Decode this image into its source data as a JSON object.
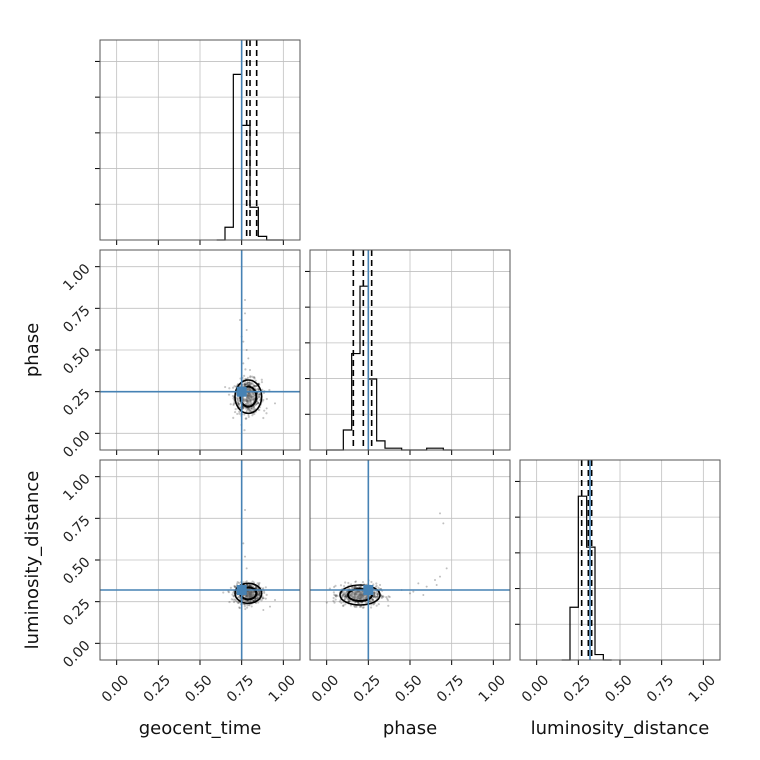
{
  "chart_data": {
    "type": "corner",
    "parameters": [
      "geocent_time",
      "phase",
      "luminosity_distance"
    ],
    "axis_range": [
      -0.1,
      1.1
    ],
    "tick_values": [
      0.0,
      0.25,
      0.5,
      0.75,
      1.0
    ],
    "tick_labels": [
      "0.00",
      "0.25",
      "0.50",
      "0.75",
      "1.00"
    ],
    "grid": true,
    "colors": {
      "truth": "#4682b4",
      "hist": "#000000",
      "quantile": "#000000",
      "scatter": "#000000",
      "contour": "#000000",
      "grid": "#c0c0c0"
    },
    "truths": {
      "geocent_time": 0.75,
      "phase": 0.25,
      "luminosity_distance": 0.32
    },
    "histograms": [
      {
        "param": "geocent_time",
        "bin_edges": [
          0.6,
          0.65,
          0.7,
          0.75,
          0.8,
          0.85,
          0.9,
          0.95,
          1.0
        ],
        "counts": [
          0,
          0.07,
          0.91,
          0.63,
          0.18,
          0.02,
          0,
          0
        ],
        "quantiles": [
          0.78,
          0.8,
          0.84
        ]
      },
      {
        "param": "phase",
        "bin_edges": [
          0.0,
          0.05,
          0.1,
          0.15,
          0.2,
          0.25,
          0.3,
          0.35,
          0.4,
          0.45,
          0.5,
          0.55,
          0.6,
          0.65,
          0.7,
          0.75
        ],
        "counts": [
          0,
          0,
          0.11,
          0.53,
          0.9,
          0.39,
          0.05,
          0.01,
          0.01,
          0,
          0,
          0,
          0.01,
          0.01,
          0
        ],
        "quantiles": [
          0.16,
          0.22,
          0.27
        ]
      },
      {
        "param": "luminosity_distance",
        "bin_edges": [
          0.15,
          0.2,
          0.25,
          0.3,
          0.35,
          0.4,
          0.45
        ],
        "counts": [
          0,
          0.29,
          0.9,
          0.62,
          0.03,
          0
        ],
        "quantiles": [
          0.27,
          0.31,
          0.33
        ]
      }
    ],
    "panels_2d": [
      {
        "x": "geocent_time",
        "y": "phase",
        "center": [
          0.79,
          0.22
        ],
        "spread": [
          0.04,
          0.05
        ],
        "tail_points": [
          [
            0.77,
            0.8
          ],
          [
            0.78,
            0.62
          ],
          [
            0.76,
            0.55
          ],
          [
            0.79,
            0.45
          ],
          [
            0.74,
            0.68
          ],
          [
            0.77,
            0.72
          ],
          [
            0.75,
            0.58
          ],
          [
            0.8,
            0.38
          ],
          [
            0.78,
            0.5
          ],
          [
            0.76,
            0.42
          ],
          [
            0.9,
            0.15
          ],
          [
            0.95,
            0.18
          ]
        ]
      },
      {
        "x": "geocent_time",
        "y": "luminosity_distance",
        "center": [
          0.79,
          0.3
        ],
        "spread": [
          0.04,
          0.03
        ],
        "tail_points": [
          [
            0.77,
            0.8
          ],
          [
            0.76,
            0.6
          ],
          [
            0.77,
            0.52
          ],
          [
            0.78,
            0.45
          ],
          [
            0.92,
            0.22
          ],
          [
            0.95,
            0.26
          ],
          [
            0.88,
            0.2
          ]
        ]
      },
      {
        "x": "phase",
        "y": "luminosity_distance",
        "center": [
          0.2,
          0.29
        ],
        "spread": [
          0.06,
          0.03
        ],
        "tail_points": [
          [
            0.45,
            0.32
          ],
          [
            0.52,
            0.31
          ],
          [
            0.6,
            0.34
          ],
          [
            0.68,
            0.4
          ],
          [
            0.72,
            0.45
          ],
          [
            0.7,
            0.72
          ],
          [
            0.68,
            0.78
          ],
          [
            0.65,
            0.38
          ],
          [
            0.55,
            0.36
          ],
          [
            0.5,
            0.3
          ],
          [
            0.58,
            0.29
          ],
          [
            0.66,
            0.35
          ]
        ]
      }
    ]
  }
}
